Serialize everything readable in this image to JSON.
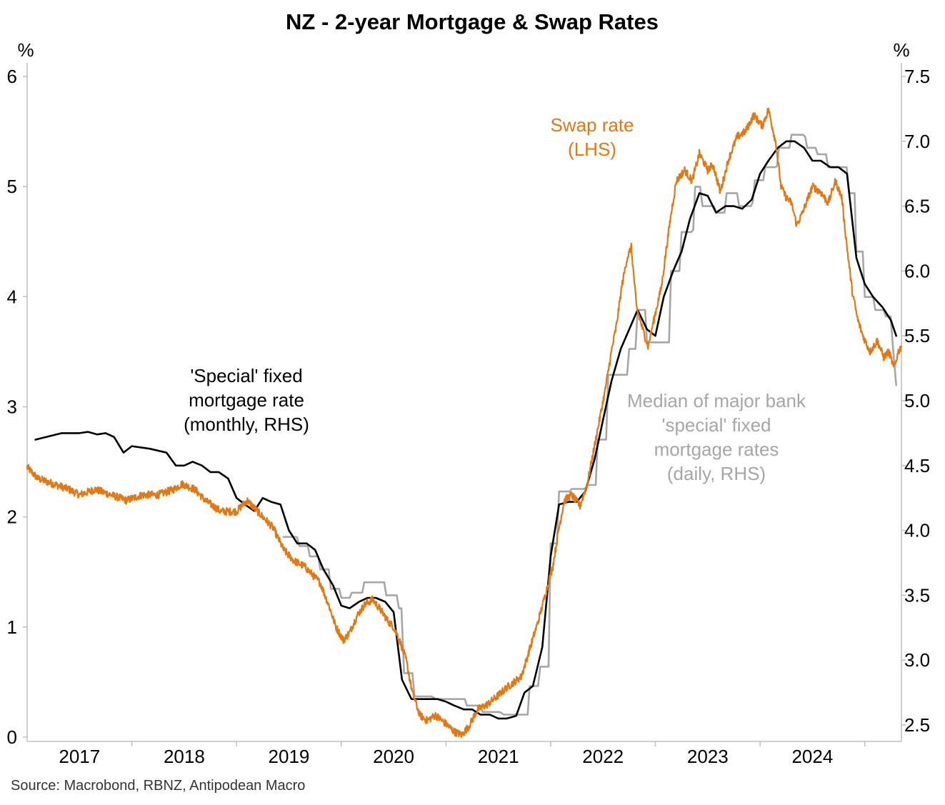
{
  "chart_data": {
    "type": "line",
    "title": "NZ - 2-year Mortgage & Swap Rates",
    "left_axis": {
      "unit_label": "%",
      "ylim": [
        0,
        6
      ],
      "ticks": [
        "0",
        "1",
        "2",
        "3",
        "4",
        "5",
        "6"
      ],
      "tick_values": [
        0,
        1,
        2,
        3,
        4,
        5,
        6
      ]
    },
    "right_axis": {
      "unit_label": "%",
      "ylim": [
        2.4,
        7.5
      ],
      "ticks": [
        "2.5",
        "3.0",
        "3.5",
        "4.0",
        "4.5",
        "5.0",
        "5.5",
        "6.0",
        "6.5",
        "7.0",
        "7.5"
      ],
      "tick_values": [
        2.5,
        3.0,
        3.5,
        4.0,
        4.5,
        5.0,
        5.5,
        6.0,
        6.5,
        7.0,
        7.5
      ]
    },
    "x_axis": {
      "xlim": [
        2016.5,
        2024.85
      ],
      "year_labels": [
        "2017",
        "2018",
        "2019",
        "2020",
        "2021",
        "2022",
        "2023",
        "2024"
      ],
      "year_label_positions": [
        2017,
        2018,
        2019,
        2020,
        2021,
        2022,
        2023,
        2024
      ],
      "tick_marks": [
        2017.5,
        2018.5,
        2019.5,
        2020.5,
        2021.5,
        2022.5,
        2023.5,
        2024.5
      ]
    },
    "series": [
      {
        "key": "swap",
        "name": "Swap rate (LHS)",
        "axis": "left",
        "color": "#E4770F",
        "frequency": "daily",
        "points": [
          [
            2016.5,
            2.45
          ],
          [
            2016.6,
            2.35
          ],
          [
            2016.75,
            2.3
          ],
          [
            2016.9,
            2.25
          ],
          [
            2017.0,
            2.2
          ],
          [
            2017.15,
            2.25
          ],
          [
            2017.3,
            2.2
          ],
          [
            2017.45,
            2.15
          ],
          [
            2017.6,
            2.2
          ],
          [
            2017.75,
            2.2
          ],
          [
            2017.9,
            2.25
          ],
          [
            2017.98,
            2.3
          ],
          [
            2018.1,
            2.25
          ],
          [
            2018.2,
            2.15
          ],
          [
            2018.35,
            2.05
          ],
          [
            2018.5,
            2.05
          ],
          [
            2018.6,
            2.15
          ],
          [
            2018.7,
            2.05
          ],
          [
            2018.85,
            1.9
          ],
          [
            2018.95,
            1.7
          ],
          [
            2019.05,
            1.6
          ],
          [
            2019.15,
            1.55
          ],
          [
            2019.3,
            1.4
          ],
          [
            2019.38,
            1.2
          ],
          [
            2019.45,
            1.0
          ],
          [
            2019.52,
            0.88
          ],
          [
            2019.58,
            0.95
          ],
          [
            2019.65,
            1.1
          ],
          [
            2019.72,
            1.2
          ],
          [
            2019.8,
            1.25
          ],
          [
            2019.88,
            1.15
          ],
          [
            2019.95,
            1.05
          ],
          [
            2020.0,
            1.0
          ],
          [
            2020.05,
            0.9
          ],
          [
            2020.12,
            0.7
          ],
          [
            2020.18,
            0.4
          ],
          [
            2020.25,
            0.2
          ],
          [
            2020.32,
            0.15
          ],
          [
            2020.4,
            0.2
          ],
          [
            2020.5,
            0.12
          ],
          [
            2020.58,
            0.05
          ],
          [
            2020.65,
            0.02
          ],
          [
            2020.72,
            0.1
          ],
          [
            2020.8,
            0.25
          ],
          [
            2020.9,
            0.3
          ],
          [
            2021.0,
            0.38
          ],
          [
            2021.08,
            0.45
          ],
          [
            2021.15,
            0.5
          ],
          [
            2021.22,
            0.55
          ],
          [
            2021.3,
            0.8
          ],
          [
            2021.38,
            1.05
          ],
          [
            2021.45,
            1.3
          ],
          [
            2021.52,
            1.55
          ],
          [
            2021.58,
            1.9
          ],
          [
            2021.63,
            2.15
          ],
          [
            2021.7,
            2.2
          ],
          [
            2021.78,
            2.1
          ],
          [
            2021.85,
            2.3
          ],
          [
            2021.9,
            2.55
          ],
          [
            2021.96,
            2.85
          ],
          [
            2022.02,
            3.15
          ],
          [
            2022.08,
            3.5
          ],
          [
            2022.13,
            3.75
          ],
          [
            2022.18,
            4.1
          ],
          [
            2022.23,
            4.35
          ],
          [
            2022.27,
            4.45
          ],
          [
            2022.32,
            3.9
          ],
          [
            2022.38,
            3.7
          ],
          [
            2022.43,
            3.55
          ],
          [
            2022.5,
            3.85
          ],
          [
            2022.56,
            4.1
          ],
          [
            2022.6,
            4.4
          ],
          [
            2022.65,
            4.75
          ],
          [
            2022.7,
            5.05
          ],
          [
            2022.78,
            5.15
          ],
          [
            2022.85,
            5.05
          ],
          [
            2022.92,
            5.3
          ],
          [
            2023.0,
            5.15
          ],
          [
            2023.05,
            5.2
          ],
          [
            2023.12,
            4.95
          ],
          [
            2023.2,
            5.25
          ],
          [
            2023.28,
            5.45
          ],
          [
            2023.36,
            5.5
          ],
          [
            2023.44,
            5.65
          ],
          [
            2023.52,
            5.55
          ],
          [
            2023.58,
            5.7
          ],
          [
            2023.65,
            5.4
          ],
          [
            2023.7,
            5.0
          ],
          [
            2023.75,
            4.9
          ],
          [
            2023.8,
            4.85
          ],
          [
            2023.85,
            4.65
          ],
          [
            2023.9,
            4.75
          ],
          [
            2024.0,
            5.0
          ],
          [
            2024.08,
            4.95
          ],
          [
            2024.15,
            4.85
          ],
          [
            2024.22,
            5.05
          ],
          [
            2024.28,
            4.9
          ],
          [
            2024.33,
            4.45
          ],
          [
            2024.38,
            4.05
          ],
          [
            2024.43,
            3.8
          ],
          [
            2024.48,
            3.65
          ],
          [
            2024.55,
            3.5
          ],
          [
            2024.62,
            3.6
          ],
          [
            2024.68,
            3.45
          ],
          [
            2024.73,
            3.5
          ],
          [
            2024.78,
            3.35
          ],
          [
            2024.82,
            3.5
          ],
          [
            2024.85,
            3.55
          ]
        ]
      },
      {
        "key": "monthly",
        "name": "'Special' fixed mortgage rate (monthly, RHS)",
        "axis": "right",
        "color": "#000000",
        "frequency": "monthly",
        "points": [
          [
            2016.58,
            4.7
          ],
          [
            2016.83,
            4.75
          ],
          [
            2017.0,
            4.75
          ],
          [
            2017.08,
            4.76
          ],
          [
            2017.17,
            4.74
          ],
          [
            2017.25,
            4.75
          ],
          [
            2017.33,
            4.72
          ],
          [
            2017.42,
            4.6
          ],
          [
            2017.5,
            4.65
          ],
          [
            2017.67,
            4.63
          ],
          [
            2017.83,
            4.6
          ],
          [
            2017.92,
            4.5
          ],
          [
            2018.0,
            4.5
          ],
          [
            2018.08,
            4.53
          ],
          [
            2018.17,
            4.5
          ],
          [
            2018.25,
            4.45
          ],
          [
            2018.33,
            4.45
          ],
          [
            2018.42,
            4.4
          ],
          [
            2018.5,
            4.25
          ],
          [
            2018.58,
            4.2
          ],
          [
            2018.67,
            4.15
          ],
          [
            2018.75,
            4.25
          ],
          [
            2018.83,
            4.22
          ],
          [
            2018.92,
            4.2
          ],
          [
            2019.0,
            4.0
          ],
          [
            2019.08,
            3.9
          ],
          [
            2019.17,
            3.9
          ],
          [
            2019.25,
            3.85
          ],
          [
            2019.33,
            3.7
          ],
          [
            2019.42,
            3.58
          ],
          [
            2019.5,
            3.42
          ],
          [
            2019.58,
            3.4
          ],
          [
            2019.67,
            3.45
          ],
          [
            2019.75,
            3.48
          ],
          [
            2019.83,
            3.48
          ],
          [
            2019.92,
            3.45
          ],
          [
            2020.0,
            3.37
          ],
          [
            2020.08,
            2.85
          ],
          [
            2020.17,
            2.7
          ],
          [
            2020.25,
            2.7
          ],
          [
            2020.33,
            2.7
          ],
          [
            2020.42,
            2.7
          ],
          [
            2020.5,
            2.68
          ],
          [
            2020.58,
            2.65
          ],
          [
            2020.67,
            2.62
          ],
          [
            2020.75,
            2.62
          ],
          [
            2020.83,
            2.58
          ],
          [
            2020.92,
            2.58
          ],
          [
            2021.0,
            2.55
          ],
          [
            2021.08,
            2.55
          ],
          [
            2021.17,
            2.57
          ],
          [
            2021.25,
            2.75
          ],
          [
            2021.33,
            2.8
          ],
          [
            2021.42,
            3.1
          ],
          [
            2021.5,
            3.8
          ],
          [
            2021.58,
            4.2
          ],
          [
            2021.67,
            4.22
          ],
          [
            2021.75,
            4.22
          ],
          [
            2021.83,
            4.3
          ],
          [
            2021.92,
            4.55
          ],
          [
            2022.0,
            4.85
          ],
          [
            2022.08,
            5.15
          ],
          [
            2022.17,
            5.4
          ],
          [
            2022.25,
            5.55
          ],
          [
            2022.33,
            5.7
          ],
          [
            2022.42,
            5.55
          ],
          [
            2022.5,
            5.5
          ],
          [
            2022.58,
            5.8
          ],
          [
            2022.67,
            6.0
          ],
          [
            2022.75,
            6.15
          ],
          [
            2022.83,
            6.4
          ],
          [
            2022.92,
            6.6
          ],
          [
            2023.0,
            6.58
          ],
          [
            2023.08,
            6.45
          ],
          [
            2023.17,
            6.5
          ],
          [
            2023.25,
            6.5
          ],
          [
            2023.33,
            6.48
          ],
          [
            2023.42,
            6.55
          ],
          [
            2023.5,
            6.75
          ],
          [
            2023.58,
            6.85
          ],
          [
            2023.67,
            6.95
          ],
          [
            2023.75,
            7.0
          ],
          [
            2023.83,
            7.0
          ],
          [
            2023.92,
            6.95
          ],
          [
            2024.0,
            6.85
          ],
          [
            2024.08,
            6.85
          ],
          [
            2024.17,
            6.8
          ],
          [
            2024.25,
            6.8
          ],
          [
            2024.33,
            6.75
          ],
          [
            2024.42,
            6.1
          ],
          [
            2024.5,
            5.9
          ],
          [
            2024.58,
            5.8
          ],
          [
            2024.67,
            5.72
          ],
          [
            2024.75,
            5.62
          ],
          [
            2024.8,
            5.5
          ]
        ]
      },
      {
        "key": "median",
        "name": "Median of major bank 'special' fixed mortgage rates (daily, RHS)",
        "axis": "right",
        "color": "#A6A6A6",
        "frequency": "daily",
        "points": [
          [
            2018.95,
            3.95
          ],
          [
            2019.1,
            3.88
          ],
          [
            2019.2,
            3.8
          ],
          [
            2019.3,
            3.7
          ],
          [
            2019.4,
            3.55
          ],
          [
            2019.5,
            3.48
          ],
          [
            2019.6,
            3.52
          ],
          [
            2019.72,
            3.6
          ],
          [
            2019.85,
            3.6
          ],
          [
            2019.93,
            3.5
          ],
          [
            2020.05,
            3.4
          ],
          [
            2020.1,
            2.9
          ],
          [
            2020.2,
            2.72
          ],
          [
            2020.4,
            2.7
          ],
          [
            2020.6,
            2.7
          ],
          [
            2020.7,
            2.65
          ],
          [
            2020.85,
            2.6
          ],
          [
            2021.05,
            2.58
          ],
          [
            2021.2,
            2.58
          ],
          [
            2021.3,
            2.8
          ],
          [
            2021.4,
            2.95
          ],
          [
            2021.5,
            3.9
          ],
          [
            2021.58,
            4.3
          ],
          [
            2021.7,
            4.32
          ],
          [
            2021.85,
            4.35
          ],
          [
            2021.95,
            4.7
          ],
          [
            2022.05,
            5.2
          ],
          [
            2022.15,
            5.2
          ],
          [
            2022.25,
            5.4
          ],
          [
            2022.33,
            5.7
          ],
          [
            2022.42,
            5.45
          ],
          [
            2022.55,
            5.45
          ],
          [
            2022.65,
            6.0
          ],
          [
            2022.75,
            6.3
          ],
          [
            2022.88,
            6.65
          ],
          [
            2022.95,
            6.5
          ],
          [
            2023.08,
            6.45
          ],
          [
            2023.18,
            6.6
          ],
          [
            2023.3,
            6.5
          ],
          [
            2023.45,
            6.7
          ],
          [
            2023.55,
            6.8
          ],
          [
            2023.68,
            6.95
          ],
          [
            2023.8,
            7.05
          ],
          [
            2023.95,
            6.95
          ],
          [
            2024.05,
            6.9
          ],
          [
            2024.15,
            6.8
          ],
          [
            2024.28,
            6.8
          ],
          [
            2024.35,
            6.6
          ],
          [
            2024.42,
            6.15
          ],
          [
            2024.5,
            5.8
          ],
          [
            2024.6,
            5.7
          ],
          [
            2024.7,
            5.65
          ],
          [
            2024.77,
            5.4
          ],
          [
            2024.8,
            5.12
          ]
        ]
      }
    ],
    "annotations": [
      {
        "key": "swap",
        "lines": [
          "Swap rate",
          "(LHS)"
        ],
        "color": "#E4770F"
      },
      {
        "key": "monthly",
        "lines": [
          "'Special' fixed",
          "mortgage rate",
          "(monthly, RHS)"
        ],
        "color": "#000000"
      },
      {
        "key": "median",
        "lines": [
          "Median of major bank",
          "'special' fixed",
          "mortgage rates",
          "(daily, RHS)"
        ],
        "color": "#A6A6A6"
      }
    ],
    "grid": false,
    "legend": "none (inline annotations)",
    "source": "Source: Macrobond, RBNZ, Antipodean Macro"
  }
}
